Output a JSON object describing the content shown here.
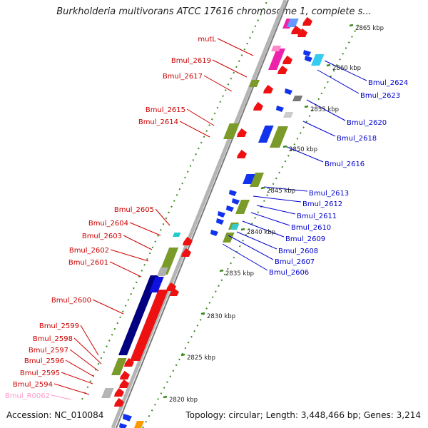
{
  "title": "Burkholderia multivorans ATCC 17616 chromosome 1, complete s...",
  "footer": {
    "accession": "Accession: NC_010084",
    "summary": "Topology: circular; Length: 3,448,466 bp; Genes: 3,214"
  },
  "colors": {
    "left_label": "#cc0000",
    "right_label": "#0000cc",
    "rna_label": "#ff99cc",
    "backbone": "#888888",
    "tick_green": "#3a8a1e"
  },
  "kbp_ticks": [
    "2820 kbp",
    "2825 kbp",
    "2830 kbp",
    "2835 kbp",
    "2840 kbp",
    "2845 kbp",
    "2850 kbp",
    "2855 kbp",
    "2860 kbp",
    "2865 kbp"
  ],
  "left_genes": [
    "mutL",
    "Bmul_2619",
    "Bmul_2617",
    "Bmul_2615",
    "Bmul_2614",
    "Bmul_2605",
    "Bmul_2604",
    "Bmul_2603",
    "Bmul_2602",
    "Bmul_2601",
    "Bmul_2600",
    "Bmul_2599",
    "Bmul_2598",
    "Bmul_2597",
    "Bmul_2596",
    "Bmul_2595",
    "Bmul_2594",
    "Bmul_R0062"
  ],
  "right_genes": [
    "Bmul_2624",
    "Bmul_2623",
    "Bmul_2620",
    "Bmul_2618",
    "Bmul_2616",
    "Bmul_2613",
    "Bmul_2612",
    "Bmul_2611",
    "Bmul_2610",
    "Bmul_2609",
    "Bmul_2608",
    "Bmul_2607",
    "Bmul_2606"
  ]
}
